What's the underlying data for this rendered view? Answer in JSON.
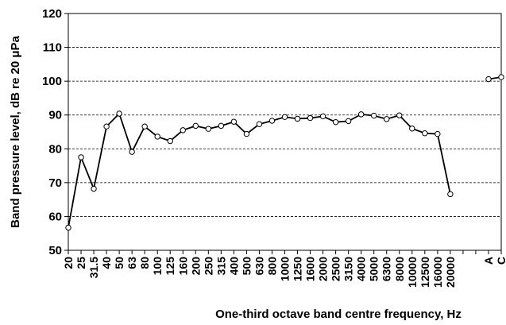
{
  "chart_data": {
    "type": "line",
    "x_label": "One-third octave band centre frequency, Hz",
    "y_label": "Band  pressure level, dB re 20 μPa",
    "categories": [
      "20",
      "25",
      "31.5",
      "40",
      "50",
      "63",
      "80",
      "100",
      "125",
      "160",
      "200",
      "250",
      "315",
      "400",
      "500",
      "630",
      "800",
      "1000",
      "1250",
      "1600",
      "2000",
      "2500",
      "3150",
      "4000",
      "5000",
      "6300",
      "8000",
      "10000",
      "12500",
      "16000",
      "20000",
      null,
      null,
      "A",
      "C"
    ],
    "values": [
      56.7,
      77.5,
      68.2,
      86.6,
      90.4,
      79.1,
      86.6,
      83.6,
      82.3,
      85.5,
      86.8,
      85.9,
      86.8,
      88.0,
      84.4,
      87.3,
      88.3,
      89.4,
      88.9,
      89.1,
      89.6,
      87.9,
      88.2,
      90.2,
      89.8,
      88.8,
      89.9,
      86.0,
      84.6,
      84.4,
      66.6,
      null,
      null,
      100.6,
      101.2
    ],
    "color": "#000000",
    "ylim": [
      50,
      120
    ],
    "yticks": [
      50,
      60,
      70,
      80,
      90,
      100,
      110,
      120
    ],
    "grid": true
  }
}
